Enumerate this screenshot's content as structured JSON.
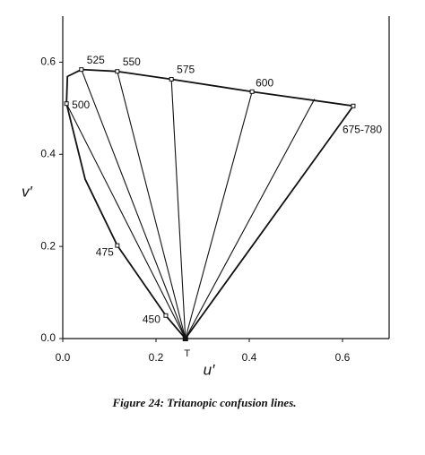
{
  "chart_data": {
    "type": "line",
    "xlabel": "u′",
    "ylabel": "v′",
    "caption": "Figure 24:  Tritanopic confusion lines.",
    "xlim": [
      0,
      0.7
    ],
    "ylim": [
      0,
      0.7
    ],
    "xticks": [
      {
        "value": 0,
        "label": "0.0"
      },
      0.2,
      0.4,
      0.6
    ],
    "yticks": [
      {
        "value": 0,
        "label": "0.0"
      },
      0.2,
      0.4,
      0.6
    ],
    "color": "#111111",
    "locus": {
      "x": [
        0.623,
        0.406,
        0.233,
        0.117,
        0.04,
        0.01,
        0.008,
        0.048,
        0.117,
        0.221,
        0.263,
        0.623
      ],
      "values": [
        0.505,
        0.536,
        0.563,
        0.58,
        0.584,
        0.569,
        0.51,
        0.346,
        0.202,
        0.05,
        0.0,
        0.505
      ]
    },
    "points": {
      "labels": [
        "500",
        "525",
        "550",
        "575",
        "600",
        "675-780",
        "475",
        "450"
      ],
      "x": [
        0.008,
        0.04,
        0.117,
        0.233,
        0.406,
        0.623,
        0.117,
        0.221
      ],
      "values": [
        0.51,
        0.584,
        0.58,
        0.563,
        0.536,
        0.505,
        0.202,
        0.05
      ]
    },
    "copunctal": {
      "label": "T",
      "x": 0.263,
      "y": 0.0
    },
    "lines": {
      "x": [
        0.008,
        0.04,
        0.117,
        0.233,
        0.406,
        0.54,
        0.623
      ],
      "values": [
        0.51,
        0.584,
        0.58,
        0.563,
        0.536,
        0.52,
        0.505
      ]
    }
  }
}
